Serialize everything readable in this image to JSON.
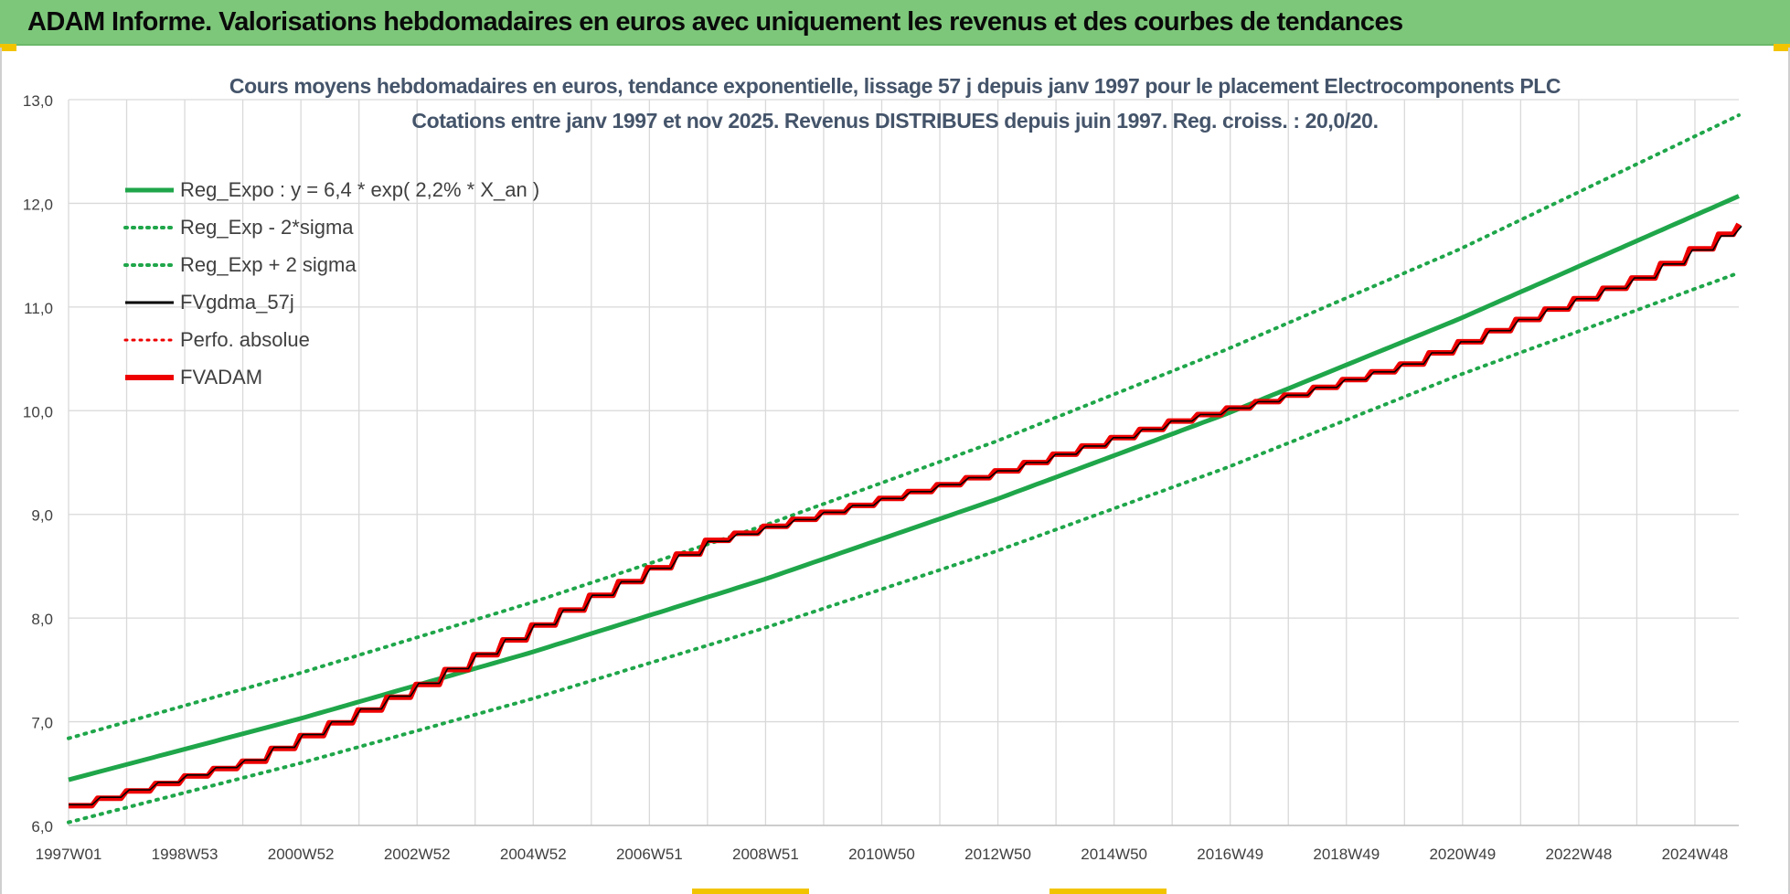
{
  "header": {
    "title": "ADAM Informe. Valorisations hebdomadaires en euros avec uniquement les revenus et des courbes de tendances"
  },
  "colors": {
    "header_bg": "#7dc77a",
    "trend_green": "#1fa64a",
    "fv_black": "#000000",
    "fvadam_red": "#ee0000",
    "title_text": "#44546a",
    "grid": "#d9d9d9"
  },
  "chart_data": {
    "type": "line",
    "title_lines": [
      "Cours moyens hebdomadaires en euros, tendance exponentielle, lissage 57 j depuis janv 1997  pour le placement Electrocomponents PLC",
      "Cotations entre janv 1997 et nov 2025. Revenus DISTRIBUES depuis juin 1997. Reg. croiss. : 20,0/20."
    ],
    "x_tick_labels": [
      "1997W01",
      "1998W53",
      "2000W52",
      "2002W52",
      "2004W52",
      "2006W51",
      "2008W51",
      "2010W50",
      "2012W50",
      "2014W50",
      "2016W49",
      "2018W49",
      "2020W49",
      "2022W48",
      "2024W48"
    ],
    "x_range": [
      1997.0,
      2025.85
    ],
    "ylim": [
      6.0,
      13.0
    ],
    "y_ticks": [
      6.0,
      7.0,
      8.0,
      9.0,
      10.0,
      11.0,
      12.0,
      13.0
    ],
    "y_tick_labels": [
      "6,0",
      "7,0",
      "8,0",
      "9,0",
      "10,0",
      "11,0",
      "12,0",
      "13,0"
    ],
    "grid": true,
    "legend_position": "top-left",
    "legend": [
      {
        "label": "Reg_Expo : y = 6,4 * exp( 2,2% *  X_an )",
        "color": "#1fa64a",
        "style": "solid",
        "width": 5
      },
      {
        "label": "Reg_Exp - 2*sigma",
        "color": "#1fa64a",
        "style": "dotted",
        "width": 4
      },
      {
        "label": "Reg_Exp + 2 sigma",
        "color": "#1fa64a",
        "style": "dotted",
        "width": 4
      },
      {
        "label": "FVgdma_57j",
        "color": "#000000",
        "style": "solid",
        "width": 3
      },
      {
        "label": "Perfo. absolue",
        "color": "#ee0000",
        "style": "dotted",
        "width": 3
      },
      {
        "label": "FVADAM",
        "color": "#ee0000",
        "style": "solid",
        "width": 6
      }
    ],
    "series": [
      {
        "name": "Reg_Expo : y = 6,4 * exp( 2,2% *  X_an )",
        "x": [
          1997.0,
          2001.0,
          2005.0,
          2009.0,
          2013.0,
          2017.0,
          2021.0,
          2025.85
        ],
        "values": [
          6.44,
          7.03,
          7.67,
          8.37,
          9.14,
          9.97,
          10.88,
          12.07
        ]
      },
      {
        "name": "Reg_Exp - 2*sigma",
        "x": [
          1997.0,
          2001.0,
          2005.0,
          2009.0,
          2013.0,
          2017.0,
          2021.0,
          2025.85
        ],
        "values": [
          6.03,
          6.6,
          7.22,
          7.9,
          8.64,
          9.45,
          10.34,
          11.33
        ]
      },
      {
        "name": "Reg_Exp + 2 sigma",
        "x": [
          1997.0,
          2001.0,
          2005.0,
          2009.0,
          2013.0,
          2017.0,
          2021.0,
          2025.85
        ],
        "values": [
          6.84,
          7.47,
          8.15,
          8.89,
          9.7,
          10.59,
          11.55,
          12.85
        ]
      },
      {
        "name": "FVADAM",
        "x": [
          1997.0,
          2000.0,
          2003.0,
          2006.0,
          2008.0,
          2010.0,
          2013.0,
          2016.0,
          2018.0,
          2020.0,
          2022.0,
          2024.0,
          2025.85
        ],
        "values": [
          6.19,
          6.62,
          7.36,
          8.22,
          8.75,
          9.02,
          9.42,
          9.9,
          10.15,
          10.45,
          10.88,
          11.28,
          11.8
        ]
      },
      {
        "name": "FVgdma_57j",
        "x": [
          1997.0,
          2000.0,
          2003.0,
          2006.0,
          2008.0,
          2010.0,
          2013.0,
          2016.0,
          2018.0,
          2020.0,
          2022.0,
          2024.0,
          2025.85
        ],
        "values": [
          6.2,
          6.63,
          7.37,
          8.22,
          8.74,
          9.02,
          9.42,
          9.9,
          10.15,
          10.45,
          10.88,
          11.28,
          11.78
        ]
      }
    ]
  }
}
